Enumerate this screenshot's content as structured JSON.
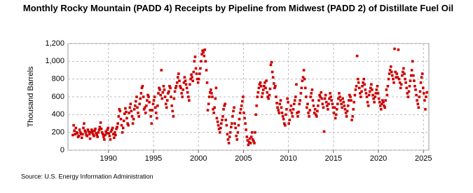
{
  "chart_data": {
    "type": "scatter",
    "title": "Monthly Rocky Mountain (PADD 4) Receipts by Pipeline from Midwest (PADD 2) of Distillate Fuel Oil",
    "y_label": "Thousand Barrels",
    "source": "Source: U.S. Energy Information Administration",
    "color": "#cc0000",
    "grid": true,
    "xlim": [
      1985.5,
      2025.6
    ],
    "xticks": [
      1990,
      1995,
      2000,
      2005,
      2010,
      2015,
      2020,
      2025
    ],
    "ylim": [
      0,
      1200
    ],
    "yticks": [
      0,
      200,
      400,
      600,
      800,
      {
        "value": 1000,
        "label": "1,000"
      },
      {
        "value": 1200,
        "label": "1,200"
      }
    ],
    "x": [
      1986.04,
      1986.13,
      1986.21,
      1986.29,
      1986.38,
      1986.46,
      1986.54,
      1986.63,
      1986.71,
      1986.79,
      1986.88,
      1986.96,
      1987.04,
      1987.13,
      1987.21,
      1987.29,
      1987.38,
      1987.46,
      1987.54,
      1987.63,
      1987.71,
      1987.79,
      1987.88,
      1987.96,
      1988.04,
      1988.13,
      1988.21,
      1988.29,
      1988.38,
      1988.46,
      1988.54,
      1988.63,
      1988.71,
      1988.79,
      1988.88,
      1988.96,
      1989.04,
      1989.13,
      1989.21,
      1989.29,
      1989.38,
      1989.46,
      1989.54,
      1989.63,
      1989.71,
      1989.79,
      1989.88,
      1989.96,
      1990.04,
      1990.13,
      1990.21,
      1990.29,
      1990.38,
      1990.46,
      1990.54,
      1990.63,
      1990.71,
      1990.79,
      1990.88,
      1990.96,
      1991.04,
      1991.13,
      1991.21,
      1991.29,
      1991.38,
      1991.46,
      1991.54,
      1991.63,
      1991.71,
      1991.79,
      1991.88,
      1991.96,
      1992.04,
      1992.13,
      1992.21,
      1992.29,
      1992.38,
      1992.46,
      1992.54,
      1992.63,
      1992.71,
      1992.79,
      1992.88,
      1992.96,
      1993.04,
      1993.13,
      1993.21,
      1993.29,
      1993.38,
      1993.46,
      1993.54,
      1993.63,
      1993.71,
      1993.79,
      1993.88,
      1993.96,
      1994.04,
      1994.13,
      1994.21,
      1994.29,
      1994.38,
      1994.46,
      1994.54,
      1994.63,
      1994.71,
      1994.79,
      1994.88,
      1994.96,
      1995.04,
      1995.13,
      1995.21,
      1995.29,
      1995.38,
      1995.46,
      1995.54,
      1995.63,
      1995.71,
      1995.79,
      1995.88,
      1995.96,
      1996.04,
      1996.13,
      1996.21,
      1996.29,
      1996.38,
      1996.46,
      1996.54,
      1996.63,
      1996.71,
      1996.79,
      1996.88,
      1996.96,
      1997.04,
      1997.13,
      1997.21,
      1997.29,
      1997.38,
      1997.46,
      1997.54,
      1997.63,
      1997.71,
      1997.79,
      1997.88,
      1997.96,
      1998.04,
      1998.13,
      1998.21,
      1998.29,
      1998.38,
      1998.46,
      1998.54,
      1998.63,
      1998.71,
      1998.79,
      1998.88,
      1998.96,
      1999.04,
      1999.13,
      1999.21,
      1999.29,
      1999.38,
      1999.46,
      1999.54,
      1999.63,
      1999.71,
      1999.79,
      1999.88,
      1999.96,
      2000.04,
      2000.13,
      2000.21,
      2000.29,
      2000.38,
      2000.46,
      2000.54,
      2000.63,
      2000.71,
      2000.79,
      2000.88,
      2000.96,
      2001.04,
      2001.13,
      2001.21,
      2001.29,
      2001.38,
      2001.46,
      2001.54,
      2001.63,
      2001.71,
      2001.79,
      2001.88,
      2001.96,
      2002.04,
      2002.13,
      2002.21,
      2002.29,
      2002.38,
      2002.46,
      2002.54,
      2002.63,
      2002.71,
      2002.79,
      2002.88,
      2002.96,
      2003.04,
      2003.13,
      2003.21,
      2003.29,
      2003.38,
      2003.46,
      2003.54,
      2003.63,
      2003.71,
      2003.79,
      2003.88,
      2003.96,
      2004.04,
      2004.13,
      2004.21,
      2004.29,
      2004.38,
      2004.46,
      2004.54,
      2004.63,
      2004.71,
      2004.79,
      2004.88,
      2004.96,
      2005.04,
      2005.13,
      2005.21,
      2005.29,
      2005.38,
      2005.46,
      2005.54,
      2005.63,
      2005.71,
      2005.79,
      2005.88,
      2005.96,
      2006.04,
      2006.13,
      2006.21,
      2006.29,
      2006.38,
      2006.46,
      2006.54,
      2006.63,
      2006.71,
      2006.79,
      2006.88,
      2006.96,
      2007.04,
      2007.13,
      2007.21,
      2007.29,
      2007.38,
      2007.46,
      2007.54,
      2007.63,
      2007.71,
      2007.79,
      2007.88,
      2007.96,
      2008.04,
      2008.13,
      2008.21,
      2008.29,
      2008.38,
      2008.46,
      2008.54,
      2008.63,
      2008.71,
      2008.79,
      2008.88,
      2008.96,
      2009.04,
      2009.13,
      2009.21,
      2009.29,
      2009.38,
      2009.46,
      2009.54,
      2009.63,
      2009.71,
      2009.79,
      2009.88,
      2009.96,
      2010.04,
      2010.13,
      2010.21,
      2010.29,
      2010.38,
      2010.46,
      2010.54,
      2010.63,
      2010.71,
      2010.79,
      2010.88,
      2010.96,
      2011.04,
      2011.13,
      2011.21,
      2011.29,
      2011.38,
      2011.46,
      2011.54,
      2011.63,
      2011.71,
      2011.79,
      2011.88,
      2011.96,
      2012.04,
      2012.13,
      2012.21,
      2012.29,
      2012.38,
      2012.46,
      2012.54,
      2012.63,
      2012.71,
      2012.79,
      2012.88,
      2012.96,
      2013.04,
      2013.13,
      2013.21,
      2013.29,
      2013.38,
      2013.46,
      2013.54,
      2013.63,
      2013.71,
      2013.79,
      2013.88,
      2013.96,
      2014.04,
      2014.13,
      2014.21,
      2014.29,
      2014.38,
      2014.46,
      2014.54,
      2014.63,
      2014.71,
      2014.79,
      2014.88,
      2014.96,
      2015.04,
      2015.13,
      2015.21,
      2015.29,
      2015.38,
      2015.46,
      2015.54,
      2015.63,
      2015.71,
      2015.79,
      2015.88,
      2015.96,
      2016.04,
      2016.13,
      2016.21,
      2016.29,
      2016.38,
      2016.46,
      2016.54,
      2016.63,
      2016.71,
      2016.79,
      2016.88,
      2016.96,
      2017.04,
      2017.13,
      2017.21,
      2017.29,
      2017.38,
      2017.46,
      2017.54,
      2017.63,
      2017.71,
      2017.79,
      2017.88,
      2017.96,
      2018.04,
      2018.13,
      2018.21,
      2018.29,
      2018.38,
      2018.46,
      2018.54,
      2018.63,
      2018.71,
      2018.79,
      2018.88,
      2018.96,
      2019.04,
      2019.13,
      2019.21,
      2019.29,
      2019.38,
      2019.46,
      2019.54,
      2019.63,
      2019.71,
      2019.79,
      2019.88,
      2019.96,
      2020.04,
      2020.13,
      2020.21,
      2020.29,
      2020.38,
      2020.46,
      2020.54,
      2020.63,
      2020.71,
      2020.79,
      2020.88,
      2020.96,
      2021.04,
      2021.13,
      2021.21,
      2021.29,
      2021.38,
      2021.46,
      2021.54,
      2021.63,
      2021.71,
      2021.79,
      2021.88,
      2021.96,
      2022.04,
      2022.13,
      2022.21,
      2022.29,
      2022.38,
      2022.46,
      2022.54,
      2022.63,
      2022.71,
      2022.79,
      2022.88,
      2022.96,
      2023.04,
      2023.13,
      2023.21,
      2023.29,
      2023.38,
      2023.46,
      2023.54,
      2023.63,
      2023.71,
      2023.79,
      2023.88,
      2023.96,
      2024.04,
      2024.13,
      2024.21,
      2024.29,
      2024.38,
      2024.46,
      2024.54,
      2024.63,
      2024.71,
      2024.79,
      2024.88,
      2024.96,
      2025.04,
      2025.13,
      2025.21,
      2025.29,
      2025.38
    ],
    "values": [
      170,
      280,
      220,
      180,
      250,
      200,
      190,
      150,
      160,
      230,
      200,
      180,
      140,
      180,
      250,
      300,
      220,
      200,
      170,
      160,
      230,
      210,
      180,
      130,
      200,
      230,
      210,
      180,
      160,
      220,
      240,
      190,
      170,
      150,
      200,
      230,
      260,
      310,
      240,
      200,
      180,
      150,
      120,
      170,
      210,
      190,
      230,
      250,
      190,
      160,
      120,
      210,
      230,
      250,
      180,
      140,
      200,
      170,
      240,
      260,
      300,
      380,
      460,
      440,
      350,
      280,
      200,
      250,
      330,
      410,
      470,
      430,
      360,
      300,
      280,
      420,
      480,
      520,
      440,
      380,
      300,
      350,
      460,
      500,
      550,
      600,
      480,
      420,
      380,
      520,
      580,
      640,
      700,
      720,
      600,
      460,
      480,
      420,
      500,
      560,
      620,
      600,
      540,
      450,
      380,
      300,
      450,
      520,
      560,
      600,
      480,
      420,
      360,
      500,
      640,
      700,
      680,
      620,
      900,
      580,
      650,
      720,
      680,
      600,
      520,
      480,
      560,
      640,
      660,
      720,
      700,
      600,
      500,
      440,
      380,
      580,
      660,
      700,
      720,
      760,
      820,
      860,
      780,
      720,
      700,
      640,
      600,
      680,
      760,
      820,
      780,
      740,
      700,
      650,
      600,
      560,
      740,
      800,
      850,
      820,
      780,
      880,
      1000,
      1050,
      920,
      860,
      800,
      760,
      800,
      860,
      920,
      1000,
      1080,
      1120,
      1100,
      1060,
      1130,
      1000,
      900,
      760,
      450,
      520,
      600,
      650,
      680,
      640,
      600,
      460,
      420,
      480,
      580,
      700,
      360,
      320,
      280,
      240,
      200,
      250,
      300,
      340,
      380,
      460,
      500,
      520,
      340,
      280,
      180,
      120,
      80,
      150,
      200,
      260,
      300,
      380,
      440,
      480,
      300,
      250,
      160,
      120,
      200,
      280,
      350,
      420,
      460,
      500,
      550,
      600,
      420,
      360,
      300,
      230,
      150,
      110,
      60,
      90,
      130,
      80,
      150,
      200,
      120,
      100,
      80,
      200,
      400,
      500,
      600,
      650,
      700,
      740,
      760,
      720,
      600,
      640,
      680,
      720,
      760,
      700,
      780,
      650,
      600,
      580,
      620,
      690,
      960,
      990,
      880,
      820,
      750,
      700,
      720,
      600,
      530,
      480,
      450,
      420,
      520,
      560,
      480,
      420,
      380,
      350,
      300,
      280,
      400,
      460,
      580,
      540,
      300,
      340,
      450,
      500,
      420,
      380,
      460,
      520,
      560,
      600,
      740,
      420,
      380,
      430,
      520,
      560,
      640,
      700,
      780,
      820,
      900,
      800,
      700,
      600,
      480,
      520,
      420,
      380,
      450,
      600,
      640,
      680,
      560,
      500,
      420,
      460,
      400,
      380,
      440,
      500,
      560,
      620,
      600,
      650,
      580,
      520,
      480,
      210,
      580,
      620,
      540,
      500,
      460,
      520,
      580,
      640,
      600,
      560,
      520,
      480,
      420,
      480,
      360,
      400,
      460,
      520,
      580,
      640,
      600,
      560,
      520,
      480,
      580,
      540,
      500,
      460,
      420,
      380,
      440,
      500,
      560,
      620,
      600,
      560,
      340,
      380,
      460,
      540,
      620,
      680,
      720,
      1060,
      800,
      760,
      700,
      640,
      600,
      660,
      720,
      760,
      800,
      740,
      680,
      640,
      600,
      540,
      500,
      620,
      660,
      700,
      740,
      680,
      620,
      580,
      540,
      600,
      640,
      680,
      720,
      640,
      580,
      540,
      500,
      460,
      520,
      560,
      540,
      500,
      480,
      560,
      680,
      620,
      720,
      800,
      860,
      900,
      940,
      880,
      840,
      800,
      760,
      1140,
      880,
      820,
      860,
      820,
      1130,
      800,
      760,
      700,
      740,
      840,
      880,
      920,
      860,
      800,
      760,
      700,
      640,
      600,
      660,
      720,
      780,
      840,
      900,
      1000,
      840,
      780,
      720,
      680,
      620,
      560,
      520,
      480,
      600,
      660,
      760,
      820,
      860,
      700,
      640,
      560,
      460,
      600,
      650
    ]
  }
}
